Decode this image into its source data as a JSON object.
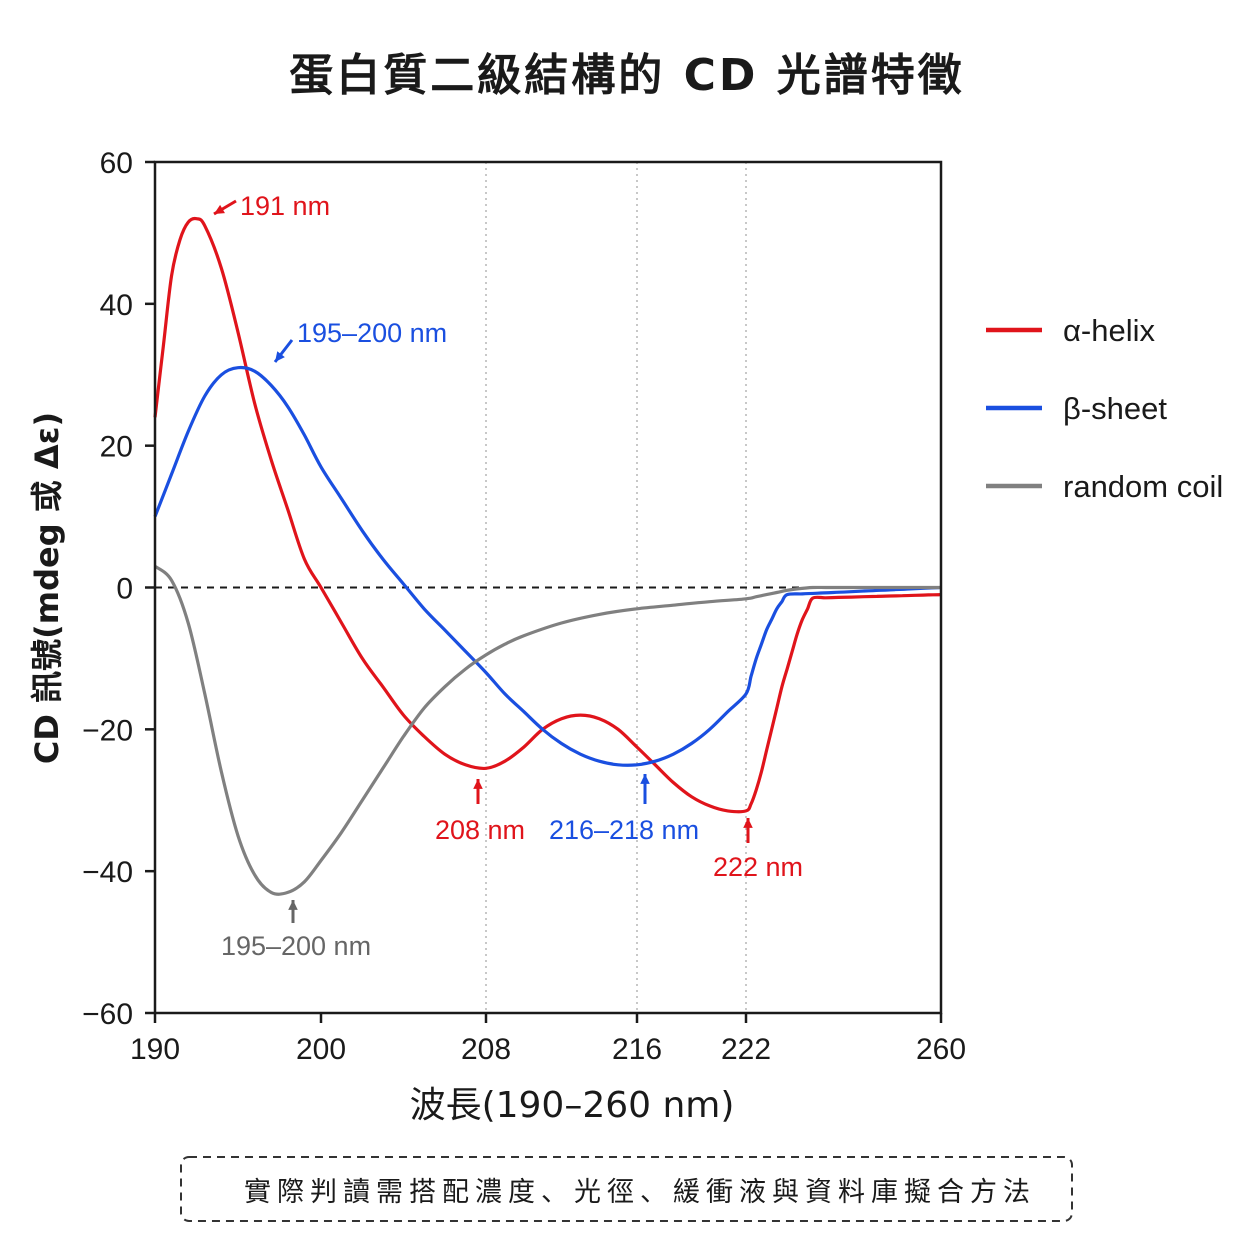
{
  "chart_data": {
    "type": "line",
    "title": "蛋白質二級結構的 CD 光譜特徵",
    "xlabel": "波長(190–260 nm)",
    "ylabel": "CD 訊號(mdeg 或 Δε)",
    "xlim": [
      190,
      260
    ],
    "ylim": [
      -60,
      60
    ],
    "xticks": [
      190,
      200,
      208,
      216,
      222,
      260
    ],
    "yticks": [
      -60,
      -40,
      -20,
      0,
      20,
      40,
      60
    ],
    "ytick_labels": [
      "−60",
      "−40",
      "−20",
      "0",
      "20",
      "40",
      "60"
    ],
    "reference_lines": {
      "horizontal_dashed_at": 0,
      "vertical_dotted_at": [
        208,
        216,
        222
      ]
    },
    "grid": false,
    "legend_position": "right",
    "series": [
      {
        "name": "α-helix",
        "color": "#e0141b",
        "points": [
          [
            190,
            24
          ],
          [
            190.5,
            34
          ],
          [
            191,
            44
          ],
          [
            191.5,
            49
          ],
          [
            192,
            51.5
          ],
          [
            192.5,
            52
          ],
          [
            193,
            51
          ],
          [
            194,
            45
          ],
          [
            195,
            36
          ],
          [
            196,
            26
          ],
          [
            197,
            18
          ],
          [
            198,
            11
          ],
          [
            199,
            4
          ],
          [
            200,
            0
          ],
          [
            201,
            -5
          ],
          [
            202,
            -10
          ],
          [
            203,
            -14
          ],
          [
            204,
            -18
          ],
          [
            205,
            -21
          ],
          [
            206,
            -23.5
          ],
          [
            207,
            -25
          ],
          [
            208,
            -25.5
          ],
          [
            209,
            -24.5
          ],
          [
            210,
            -22.5
          ],
          [
            211,
            -20
          ],
          [
            212,
            -18.5
          ],
          [
            213,
            -18
          ],
          [
            214,
            -18.5
          ],
          [
            215,
            -20
          ],
          [
            216,
            -22.5
          ],
          [
            217,
            -25
          ],
          [
            218,
            -27.5
          ],
          [
            219,
            -29.5
          ],
          [
            220,
            -30.8
          ],
          [
            221,
            -31.5
          ],
          [
            222,
            -31.5
          ],
          [
            223,
            -30.5
          ],
          [
            224,
            -28.5
          ],
          [
            225,
            -26
          ],
          [
            226,
            -23
          ],
          [
            227,
            -20
          ],
          [
            228,
            -17
          ],
          [
            229,
            -14
          ],
          [
            230,
            -11.5
          ],
          [
            231,
            -9
          ],
          [
            232,
            -6.5
          ],
          [
            233,
            -4.5
          ],
          [
            234,
            -3
          ],
          [
            235,
            -1.5
          ]
        ]
      },
      {
        "name": "β-sheet",
        "color": "#1a4fe0",
        "points": [
          [
            190,
            10
          ],
          [
            191,
            16
          ],
          [
            192,
            22
          ],
          [
            193,
            27
          ],
          [
            194,
            30
          ],
          [
            195,
            31
          ],
          [
            196,
            30.5
          ],
          [
            197,
            28.5
          ],
          [
            198,
            25.5
          ],
          [
            199,
            21.5
          ],
          [
            200,
            17
          ],
          [
            201,
            12.5
          ],
          [
            202,
            8
          ],
          [
            203,
            4
          ],
          [
            204,
            0.5
          ],
          [
            205,
            -3
          ],
          [
            206,
            -6
          ],
          [
            207,
            -9
          ],
          [
            208,
            -12
          ],
          [
            209,
            -15
          ],
          [
            210,
            -17.5
          ],
          [
            211,
            -20
          ],
          [
            212,
            -22
          ],
          [
            213,
            -23.5
          ],
          [
            214,
            -24.5
          ],
          [
            215,
            -25
          ],
          [
            216,
            -25
          ],
          [
            217,
            -24.5
          ],
          [
            218,
            -23.5
          ],
          [
            219,
            -22
          ],
          [
            220,
            -20
          ],
          [
            221,
            -17.5
          ],
          [
            222,
            -15
          ],
          [
            223,
            -12.5
          ],
          [
            224,
            -10
          ],
          [
            225,
            -8
          ],
          [
            226,
            -6
          ],
          [
            227,
            -4.5
          ],
          [
            228,
            -3
          ],
          [
            229,
            -2
          ],
          [
            230,
            -1
          ]
        ]
      },
      {
        "name": "random coil",
        "color": "#808080",
        "points": [
          [
            190,
            3
          ],
          [
            191,
            1
          ],
          [
            192,
            -5
          ],
          [
            193,
            -15
          ],
          [
            194,
            -26
          ],
          [
            195,
            -35
          ],
          [
            196,
            -40.5
          ],
          [
            197,
            -43
          ],
          [
            198,
            -43
          ],
          [
            199,
            -41.5
          ],
          [
            200,
            -38.5
          ],
          [
            201,
            -34.5
          ],
          [
            202,
            -30
          ],
          [
            203,
            -25.5
          ],
          [
            204,
            -21
          ],
          [
            205,
            -17
          ],
          [
            206,
            -14
          ],
          [
            207,
            -11.5
          ],
          [
            208,
            -9.5
          ],
          [
            209,
            -8
          ],
          [
            210,
            -6.8
          ],
          [
            212,
            -5
          ],
          [
            214,
            -3.8
          ],
          [
            216,
            -3
          ],
          [
            218,
            -2.5
          ],
          [
            220,
            -2
          ],
          [
            222,
            -1.6
          ],
          [
            224,
            -1.3
          ],
          [
            226,
            -1
          ],
          [
            228,
            -0.7
          ],
          [
            230,
            -0.4
          ],
          [
            232,
            -0.2
          ],
          [
            235,
            0
          ]
        ]
      }
    ],
    "annotations": [
      {
        "text": "191 nm",
        "color": "#e0141b",
        "x": 191,
        "y": 52
      },
      {
        "text": "195–200 nm",
        "color": "#1a4fe0",
        "x": 196,
        "y": 31
      },
      {
        "text": "208 nm",
        "color": "#e0141b",
        "x": 208,
        "y": -25.5
      },
      {
        "text": "216–218 nm",
        "color": "#1a4fe0",
        "x": 217,
        "y": -25
      },
      {
        "text": "222 nm",
        "color": "#e0141b",
        "x": 222,
        "y": -31.5
      },
      {
        "text": "195–200 nm",
        "color": "#666666",
        "x": 198,
        "y": -43
      }
    ],
    "footnote": "實際判讀需搭配濃度、光徑、緩衝液與資料庫擬合方法"
  }
}
